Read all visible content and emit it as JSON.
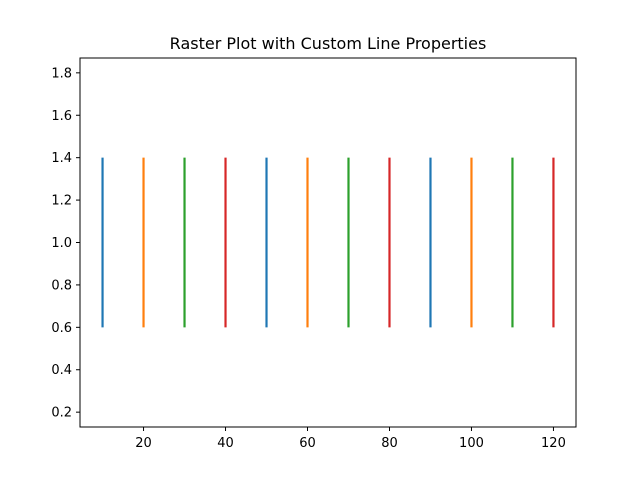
{
  "chart_data": {
    "type": "eventplot",
    "title": "Raster Plot with Custom Line Properties",
    "xlabel": "",
    "ylabel": "",
    "xlim": [
      4.5,
      125.5
    ],
    "ylim": [
      0.13,
      1.87
    ],
    "x_ticks": [
      20,
      40,
      60,
      80,
      100,
      120
    ],
    "y_ticks": [
      0.2,
      0.4,
      0.6,
      0.8,
      1.0,
      1.2,
      1.4,
      1.6,
      1.8
    ],
    "x_tick_labels": [
      "20",
      "40",
      "60",
      "80",
      "100",
      "120"
    ],
    "y_tick_labels": [
      "0.2",
      "0.4",
      "0.6",
      "0.8",
      "1.0",
      "1.2",
      "1.4",
      "1.6",
      "1.8"
    ],
    "grid": false,
    "line_offset": 1.0,
    "line_length": 0.8,
    "events": [
      {
        "x": 10,
        "color": "#1f77b4"
      },
      {
        "x": 20,
        "color": "#ff7f0e"
      },
      {
        "x": 30,
        "color": "#2ca02c"
      },
      {
        "x": 40,
        "color": "#d62728"
      },
      {
        "x": 50,
        "color": "#1f77b4"
      },
      {
        "x": 60,
        "color": "#ff7f0e"
      },
      {
        "x": 70,
        "color": "#2ca02c"
      },
      {
        "x": 80,
        "color": "#d62728"
      },
      {
        "x": 90,
        "color": "#1f77b4"
      },
      {
        "x": 100,
        "color": "#ff7f0e"
      },
      {
        "x": 110,
        "color": "#2ca02c"
      },
      {
        "x": 120,
        "color": "#d62728"
      }
    ]
  }
}
